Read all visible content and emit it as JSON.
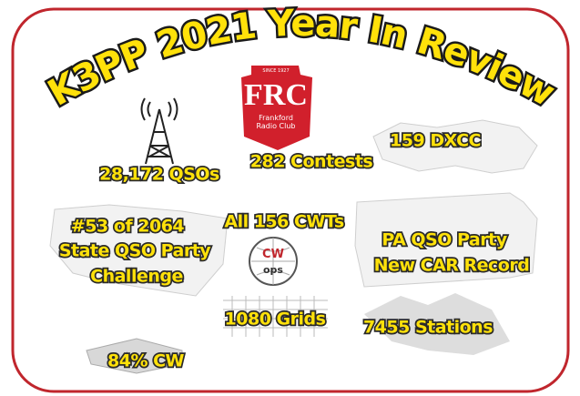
{
  "title": "K3PP 2021 Year In Review",
  "logos": {
    "frc": {
      "since": "SINCE 1927",
      "letters": "FRC",
      "name_line1": "Frankford",
      "name_line2": "Radio Club"
    },
    "cwops": {
      "top": "CW",
      "bottom": "ops"
    }
  },
  "stats": [
    {
      "lines": [
        "28,172 QSOs"
      ]
    },
    {
      "lines": [
        "282 Contests"
      ]
    },
    {
      "lines": [
        "159 DXCC"
      ]
    },
    {
      "lines": [
        "#53 of 2064",
        "State QSO Party",
        "Challenge"
      ]
    },
    {
      "lines": [
        "All 156 CWTs"
      ]
    },
    {
      "lines": [
        "PA QSO Party",
        "New CAR Record"
      ]
    },
    {
      "lines": [
        "1080 Grids"
      ]
    },
    {
      "lines": [
        "7455 Stations"
      ]
    },
    {
      "lines": [
        "84% CW"
      ]
    }
  ]
}
